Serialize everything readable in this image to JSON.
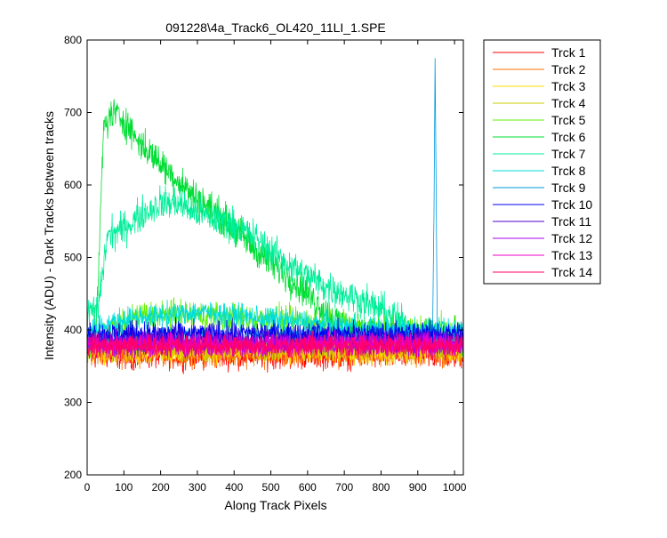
{
  "chart_data": {
    "type": "line",
    "title": "091228\\4a_Track6_OL420_11LI_1.SPE",
    "xlabel": "Along Track Pixels",
    "ylabel": "Intensity (ADU) - Dark Tracks between tracks",
    "xlim": [
      0,
      1024
    ],
    "ylim": [
      200,
      800
    ],
    "x_ticks": [
      0,
      100,
      200,
      300,
      400,
      500,
      600,
      700,
      800,
      900,
      1000
    ],
    "y_ticks": [
      200,
      300,
      400,
      500,
      600,
      700,
      800
    ],
    "grid": false,
    "legend_position": "outside-right",
    "n_points": 1024,
    "series": [
      {
        "name": "Trck 1",
        "color": "#ff0000",
        "base": 365,
        "noise": 16,
        "profile": []
      },
      {
        "name": "Trck 2",
        "color": "#ff6f00",
        "base": 368,
        "noise": 16,
        "profile": []
      },
      {
        "name": "Trck 3",
        "color": "#ffdd00",
        "base": 372,
        "noise": 16,
        "profile": []
      },
      {
        "name": "Trck 4",
        "color": "#cccc00",
        "base": 374,
        "noise": 16,
        "profile": []
      },
      {
        "name": "Trck 5",
        "color": "#66ee00",
        "base": 395,
        "noise": 18,
        "profile": [
          [
            0,
            380
          ],
          [
            150,
            420
          ],
          [
            300,
            420
          ],
          [
            450,
            415
          ],
          [
            600,
            410
          ],
          [
            750,
            405
          ],
          [
            900,
            400
          ],
          [
            1024,
            395
          ]
        ]
      },
      {
        "name": "Trck 6",
        "color": "#00dd33",
        "base": 390,
        "noise": 20,
        "profile": [
          [
            0,
            390
          ],
          [
            25,
            400
          ],
          [
            45,
            680
          ],
          [
            70,
            700
          ],
          [
            100,
            690
          ],
          [
            140,
            660
          ],
          [
            200,
            630
          ],
          [
            280,
            590
          ],
          [
            380,
            550
          ],
          [
            480,
            500
          ],
          [
            580,
            460
          ],
          [
            660,
            420
          ],
          [
            720,
            400
          ],
          [
            800,
            393
          ],
          [
            1024,
            392
          ]
        ]
      },
      {
        "name": "Trck 7",
        "color": "#00ee99",
        "base": 390,
        "noise": 20,
        "profile": [
          [
            0,
            420
          ],
          [
            30,
            430
          ],
          [
            55,
            530
          ],
          [
            100,
            540
          ],
          [
            150,
            560
          ],
          [
            200,
            575
          ],
          [
            250,
            575
          ],
          [
            300,
            560
          ],
          [
            380,
            550
          ],
          [
            450,
            530
          ],
          [
            550,
            490
          ],
          [
            650,
            460
          ],
          [
            750,
            440
          ],
          [
            830,
            420
          ],
          [
            880,
            400
          ],
          [
            920,
            390
          ],
          [
            1024,
            388
          ]
        ]
      },
      {
        "name": "Trck 8",
        "color": "#00dddd",
        "base": 410,
        "noise": 14,
        "profile": [
          [
            0,
            400
          ],
          [
            100,
            415
          ],
          [
            200,
            420
          ],
          [
            300,
            425
          ],
          [
            400,
            420
          ],
          [
            500,
            415
          ],
          [
            600,
            410
          ],
          [
            700,
            405
          ],
          [
            800,
            400
          ],
          [
            1024,
            398
          ]
        ]
      },
      {
        "name": "Trck 9",
        "color": "#0099dd",
        "base": 390,
        "noise": 14,
        "spike": [
          [
            940,
            380
          ],
          [
            944,
            560
          ],
          [
            947,
            775
          ],
          [
            950,
            600
          ],
          [
            953,
            390
          ]
        ],
        "profile": []
      },
      {
        "name": "Trck 10",
        "color": "#0000ee",
        "base": 395,
        "noise": 14,
        "profile": []
      },
      {
        "name": "Trck 11",
        "color": "#5500cc",
        "base": 385,
        "noise": 14,
        "profile": []
      },
      {
        "name": "Trck 12",
        "color": "#aa00ee",
        "base": 380,
        "noise": 14,
        "profile": []
      },
      {
        "name": "Trck 13",
        "color": "#ee00cc",
        "base": 380,
        "noise": 14,
        "profile": []
      },
      {
        "name": "Trck 14",
        "color": "#ff0066",
        "base": 378,
        "noise": 14,
        "profile": []
      }
    ]
  }
}
